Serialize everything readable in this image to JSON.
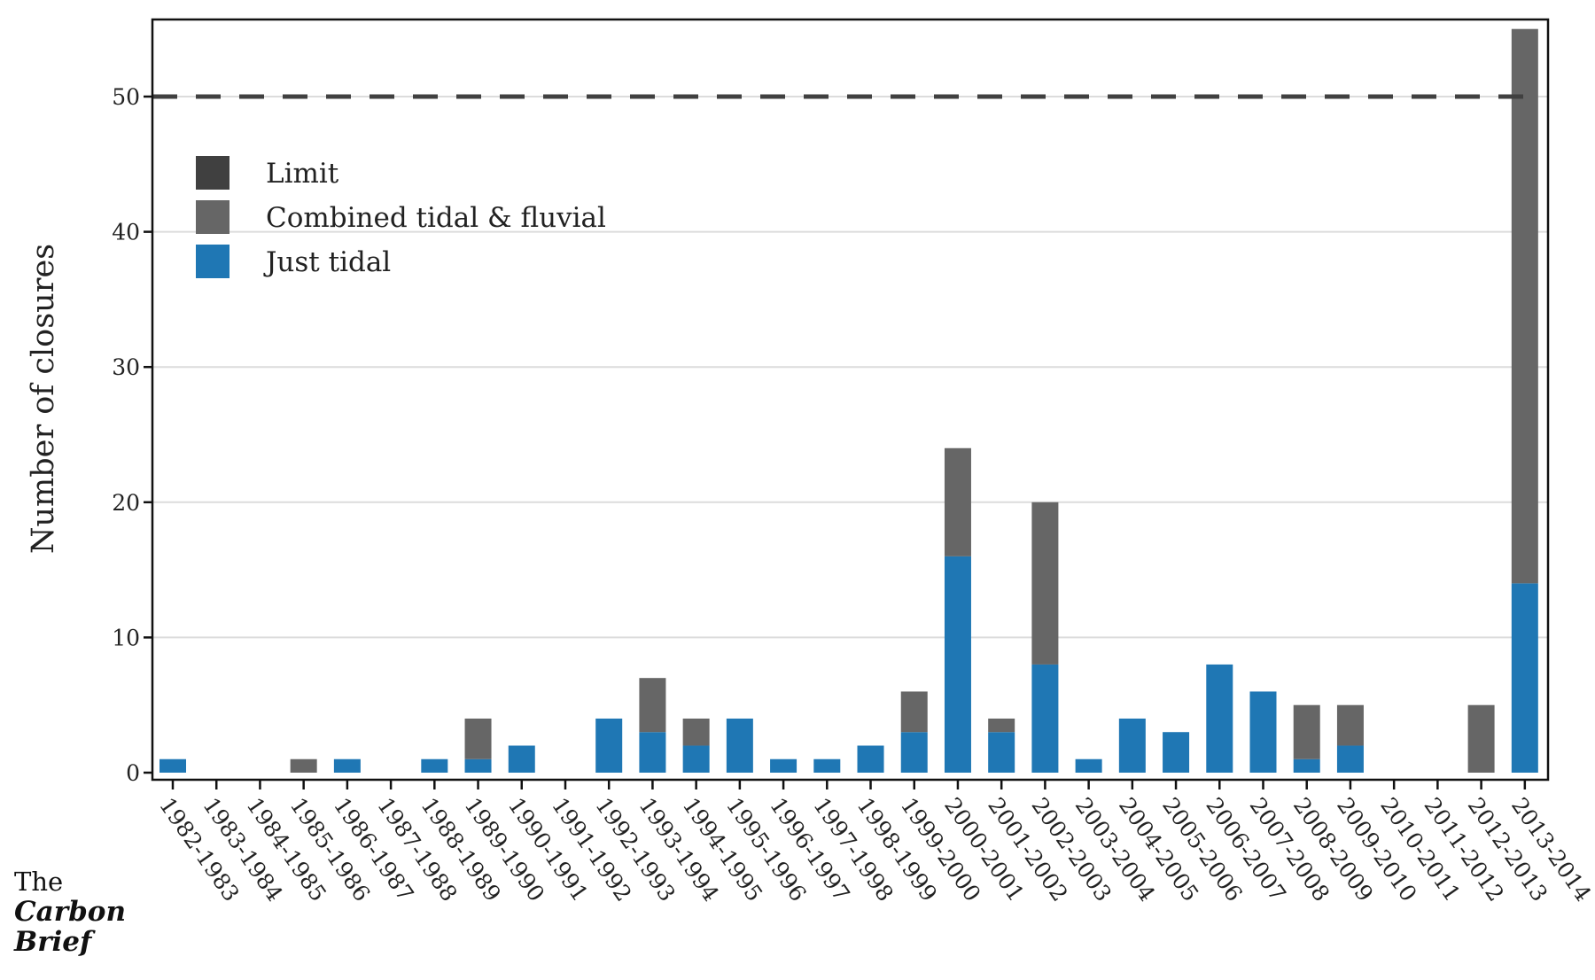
{
  "brand": {
    "line1": "The",
    "line2": "Carbon",
    "line3": "Brief"
  },
  "chart_data": {
    "type": "bar",
    "stacked": true,
    "ylabel": "Number of closures",
    "xlabel": "",
    "ylim": [
      0,
      56
    ],
    "yticks": [
      0,
      10,
      20,
      30,
      40,
      50
    ],
    "grid": "horizontal",
    "legend_position": "top-left",
    "limit": {
      "name": "Limit",
      "value": 50,
      "color": "#404040",
      "style": "dashed"
    },
    "categories": [
      "1982-1983",
      "1983-1984",
      "1984-1985",
      "1985-1986",
      "1986-1987",
      "1987-1988",
      "1988-1989",
      "1989-1990",
      "1990-1991",
      "1991-1992",
      "1992-1993",
      "1993-1994",
      "1994-1995",
      "1995-1996",
      "1996-1997",
      "1997-1998",
      "1998-1999",
      "1999-2000",
      "2000-2001",
      "2001-2002",
      "2002-2003",
      "2003-2004",
      "2004-2005",
      "2005-2006",
      "2006-2007",
      "2007-2008",
      "2008-2009",
      "2009-2010",
      "2010-2011",
      "2011-2012",
      "2012-2013",
      "2013-2014"
    ],
    "series": [
      {
        "name": "Just tidal",
        "color": "#1f77b4",
        "values": [
          1,
          0,
          0,
          0,
          1,
          0,
          1,
          1,
          2,
          0,
          4,
          3,
          2,
          4,
          1,
          1,
          2,
          3,
          16,
          3,
          8,
          1,
          4,
          3,
          8,
          6,
          1,
          2,
          0,
          0,
          0,
          14
        ]
      },
      {
        "name": "Combined tidal & fluvial",
        "color": "#666666",
        "values": [
          0,
          0,
          0,
          1,
          0,
          0,
          0,
          3,
          0,
          0,
          0,
          4,
          2,
          0,
          0,
          0,
          0,
          3,
          8,
          1,
          12,
          0,
          0,
          0,
          0,
          0,
          4,
          3,
          0,
          0,
          5,
          41
        ]
      }
    ],
    "legend": [
      {
        "label": "Limit",
        "color": "#404040"
      },
      {
        "label": "Combined tidal & fluvial",
        "color": "#666666"
      },
      {
        "label": "Just tidal",
        "color": "#1f77b4"
      }
    ]
  }
}
